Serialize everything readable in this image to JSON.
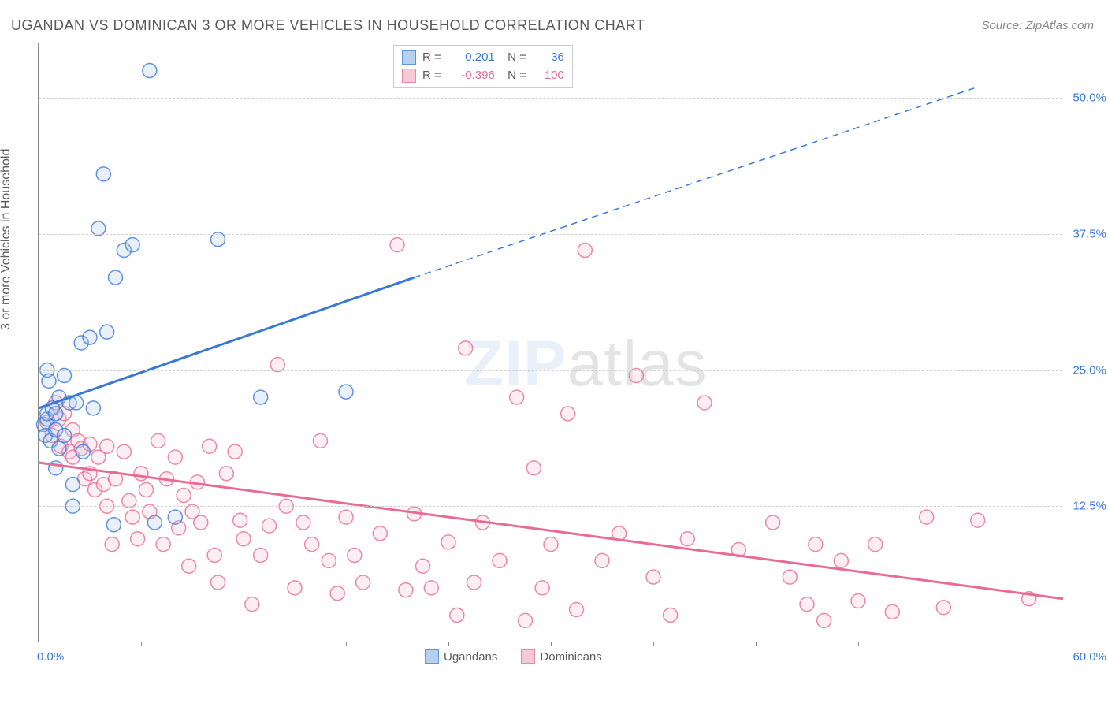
{
  "title": "UGANDAN VS DOMINICAN 3 OR MORE VEHICLES IN HOUSEHOLD CORRELATION CHART",
  "source": "Source: ZipAtlas.com",
  "ylabel": "3 or more Vehicles in Household",
  "watermark_part1": "ZIP",
  "watermark_part2": "atlas",
  "chart": {
    "type": "scatter",
    "xlim": [
      0,
      60
    ],
    "ylim": [
      0,
      55
    ],
    "x_tick_positions": [
      0,
      6,
      12,
      18,
      24,
      30,
      36,
      42,
      48,
      54
    ],
    "x_start_label": "0.0%",
    "x_end_label": "60.0%",
    "y_grid": [
      {
        "value": 12.5,
        "label": "12.5%"
      },
      {
        "value": 25.0,
        "label": "25.0%"
      },
      {
        "value": 37.5,
        "label": "37.5%"
      },
      {
        "value": 50.0,
        "label": "50.0%"
      }
    ],
    "background_color": "#ffffff",
    "grid_color": "#d0d0d0",
    "axis_color": "#888888",
    "marker_radius": 9,
    "marker_stroke_width": 1.5,
    "marker_fill_opacity": 0.25,
    "trend_line_width": 3,
    "series": [
      {
        "name": "Ugandans",
        "legend_label": "Ugandans",
        "color": "#3878d8",
        "fill": "#a7c5ed",
        "stats": {
          "R_label": "R = ",
          "R": "0.201",
          "N_label": "N = ",
          "N": "36"
        },
        "trend": {
          "x1": 0,
          "y1": 21.5,
          "x2_solid": 22,
          "y2_solid": 33.5,
          "x2_dash": 55,
          "y2_dash": 51.0
        },
        "points": [
          [
            0.3,
            20
          ],
          [
            0.4,
            19
          ],
          [
            0.5,
            20.5
          ],
          [
            0.5,
            21
          ],
          [
            0.7,
            18.5
          ],
          [
            0.8,
            21.5
          ],
          [
            0.5,
            25
          ],
          [
            0.6,
            24
          ],
          [
            1.2,
            17.8
          ],
          [
            1.0,
            19.5
          ],
          [
            1.0,
            21
          ],
          [
            1.2,
            22.5
          ],
          [
            1.5,
            19
          ],
          [
            1.5,
            24.5
          ],
          [
            1.8,
            22
          ],
          [
            2.0,
            14.5
          ],
          [
            2.0,
            12.5
          ],
          [
            2.2,
            22
          ],
          [
            2.5,
            27.5
          ],
          [
            2.6,
            17.5
          ],
          [
            3.0,
            28.0
          ],
          [
            3.2,
            21.5
          ],
          [
            3.5,
            38.0
          ],
          [
            3.8,
            43.0
          ],
          [
            4.0,
            28.5
          ],
          [
            4.4,
            10.8
          ],
          [
            4.5,
            33.5
          ],
          [
            5.0,
            36.0
          ],
          [
            5.5,
            36.5
          ],
          [
            6.5,
            52.5
          ],
          [
            6.8,
            11.0
          ],
          [
            8.0,
            11.5
          ],
          [
            10.5,
            37.0
          ],
          [
            13.0,
            22.5
          ],
          [
            18.0,
            23.0
          ],
          [
            1.0,
            16.0
          ]
        ]
      },
      {
        "name": "Dominicans",
        "legend_label": "Dominicans",
        "color": "#e86b92",
        "fill": "#f5bccd",
        "stats": {
          "R_label": "R = ",
          "R": "-0.396",
          "N_label": "N = ",
          "N": "100"
        },
        "trend": {
          "x1": 0,
          "y1": 16.5,
          "x2_solid": 60,
          "y2_solid": 4.0,
          "x2_dash": 60,
          "y2_dash": 4.0
        },
        "points": [
          [
            0.5,
            20.2
          ],
          [
            0.8,
            19.0
          ],
          [
            1.0,
            22.0
          ],
          [
            1.2,
            20.5
          ],
          [
            1.3,
            18.0
          ],
          [
            1.5,
            21.0
          ],
          [
            1.8,
            17.5
          ],
          [
            2.0,
            17.0
          ],
          [
            2.0,
            19.5
          ],
          [
            2.3,
            18.5
          ],
          [
            2.5,
            17.8
          ],
          [
            2.7,
            15.0
          ],
          [
            3.0,
            18.2
          ],
          [
            3.0,
            15.5
          ],
          [
            3.3,
            14.0
          ],
          [
            3.5,
            17.0
          ],
          [
            3.8,
            14.5
          ],
          [
            4.0,
            18.0
          ],
          [
            4.0,
            12.5
          ],
          [
            4.3,
            9.0
          ],
          [
            4.5,
            15.0
          ],
          [
            5.0,
            17.5
          ],
          [
            5.3,
            13.0
          ],
          [
            5.5,
            11.5
          ],
          [
            5.8,
            9.5
          ],
          [
            6.0,
            15.5
          ],
          [
            6.3,
            14.0
          ],
          [
            6.5,
            12.0
          ],
          [
            7.0,
            18.5
          ],
          [
            7.3,
            9.0
          ],
          [
            7.5,
            15.0
          ],
          [
            8.0,
            17.0
          ],
          [
            8.2,
            10.5
          ],
          [
            8.5,
            13.5
          ],
          [
            8.8,
            7.0
          ],
          [
            9.0,
            12.0
          ],
          [
            9.3,
            14.7
          ],
          [
            9.5,
            11.0
          ],
          [
            10.0,
            18.0
          ],
          [
            10.3,
            8.0
          ],
          [
            10.5,
            5.5
          ],
          [
            11.0,
            15.5
          ],
          [
            11.5,
            17.5
          ],
          [
            11.8,
            11.2
          ],
          [
            12.0,
            9.5
          ],
          [
            12.5,
            3.5
          ],
          [
            13.0,
            8.0
          ],
          [
            13.5,
            10.7
          ],
          [
            14.0,
            25.5
          ],
          [
            14.5,
            12.5
          ],
          [
            15.0,
            5.0
          ],
          [
            15.5,
            11.0
          ],
          [
            16.0,
            9.0
          ],
          [
            16.5,
            18.5
          ],
          [
            17.0,
            7.5
          ],
          [
            17.5,
            4.5
          ],
          [
            18.0,
            11.5
          ],
          [
            18.5,
            8.0
          ],
          [
            19.0,
            5.5
          ],
          [
            20.0,
            10.0
          ],
          [
            21.0,
            36.5
          ],
          [
            21.5,
            4.8
          ],
          [
            22.0,
            11.8
          ],
          [
            22.5,
            7.0
          ],
          [
            23.0,
            5.0
          ],
          [
            24.0,
            9.2
          ],
          [
            24.5,
            2.5
          ],
          [
            25.0,
            27.0
          ],
          [
            25.5,
            5.5
          ],
          [
            26.0,
            11.0
          ],
          [
            27.0,
            7.5
          ],
          [
            28.0,
            22.5
          ],
          [
            28.5,
            2.0
          ],
          [
            29.0,
            16.0
          ],
          [
            29.5,
            5.0
          ],
          [
            30.0,
            9.0
          ],
          [
            31.0,
            21.0
          ],
          [
            31.5,
            3.0
          ],
          [
            32.0,
            36.0
          ],
          [
            33.0,
            7.5
          ],
          [
            34.0,
            10.0
          ],
          [
            35.0,
            24.5
          ],
          [
            36.0,
            6.0
          ],
          [
            37.0,
            2.5
          ],
          [
            38.0,
            9.5
          ],
          [
            39.0,
            22.0
          ],
          [
            41.0,
            8.5
          ],
          [
            43.0,
            11.0
          ],
          [
            44.0,
            6.0
          ],
          [
            45.0,
            3.5
          ],
          [
            45.5,
            9.0
          ],
          [
            46.0,
            2.0
          ],
          [
            47.0,
            7.5
          ],
          [
            48.0,
            3.8
          ],
          [
            49.0,
            9.0
          ],
          [
            50.0,
            2.8
          ],
          [
            52.0,
            11.5
          ],
          [
            53.0,
            3.2
          ],
          [
            55.0,
            11.2
          ],
          [
            58.0,
            4.0
          ]
        ]
      }
    ]
  },
  "legend": {
    "items": [
      "Ugandans",
      "Dominicans"
    ]
  }
}
